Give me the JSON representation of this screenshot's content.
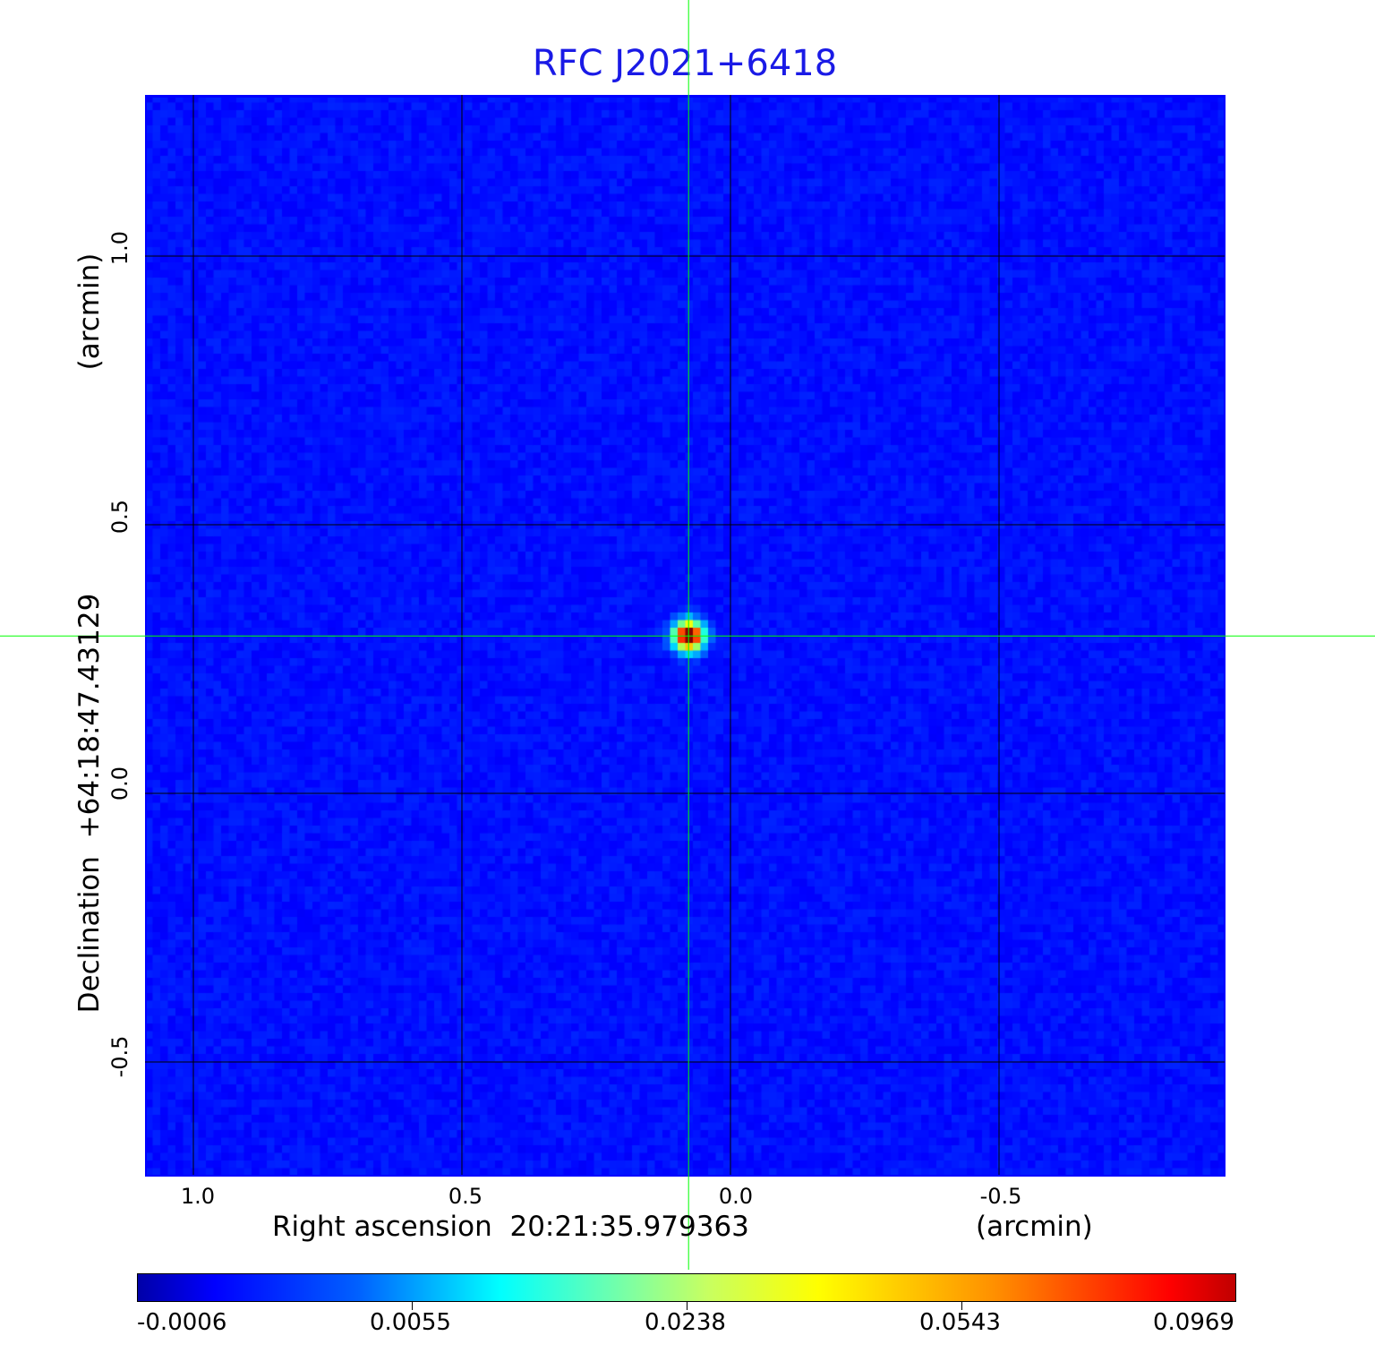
{
  "chart_data": {
    "type": "heatmap",
    "title": "RFC J2021+6418",
    "xlabel": "Right ascension  20:21:35.979363",
    "xunit": "(arcmin)",
    "ylabel": "Declination  +64:18:47.43129",
    "yunit": "(arcmin)",
    "xlim": [
      1.09,
      -0.92
    ],
    "ylim": [
      -0.71,
      1.3
    ],
    "xticks": [
      "1.0",
      "0.5",
      "0.0",
      "-0.5"
    ],
    "xtick_values": [
      1.0,
      0.5,
      0.0,
      -0.5
    ],
    "yticks": [
      "1.0",
      "0.5",
      "0.0",
      "-0.5"
    ],
    "ytick_values": [
      1.0,
      0.5,
      0.0,
      -0.5
    ],
    "grid": true,
    "source_peak": {
      "x": 0.078,
      "y": 0.293,
      "value": 0.0969
    },
    "crosshair": {
      "x": 0.078,
      "y": 0.293
    },
    "colormap": "jet",
    "colorbar": {
      "ticks": [
        "-0.0006",
        "0.0055",
        "0.0238",
        "0.0543",
        "0.0969"
      ],
      "min": -0.0006,
      "max": 0.0969,
      "placement": "bottom"
    }
  },
  "colors": {
    "title": "#1a1ae6",
    "frame": "#0000ff",
    "crosshair": "#00ff00",
    "background": "#0a2cf2"
  }
}
